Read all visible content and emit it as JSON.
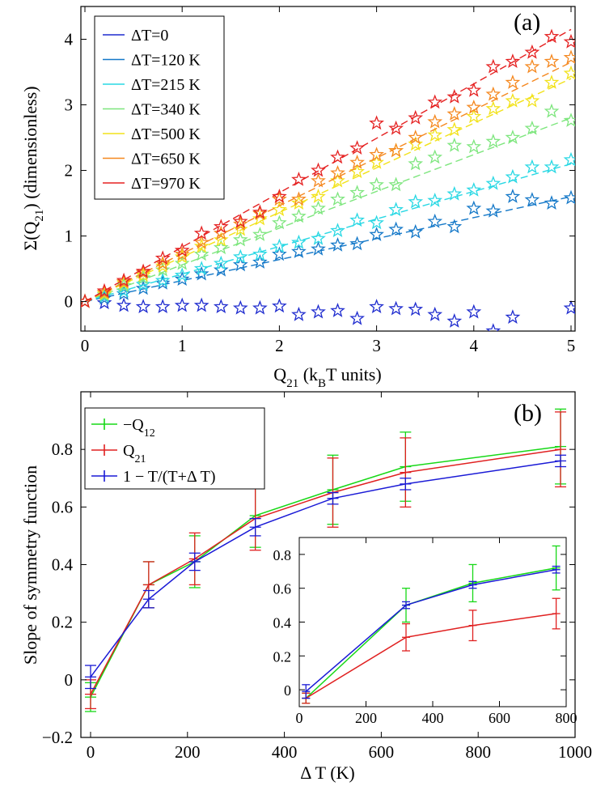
{
  "chart_data": [
    {
      "type": "scatter",
      "panel_label": "(a)",
      "xlabel": {
        "main": "Q",
        "sub": "21",
        "rest1": " (k",
        "sub2": "B",
        "rest2": "T units)"
      },
      "ylabel": {
        "main": "Σ(Q",
        "sub": "21",
        "rest": ") (dimensionless)"
      },
      "xlim": [
        0,
        5
      ],
      "ylim": [
        -0.45,
        4.5
      ],
      "xticks": [
        "0",
        "1",
        "2",
        "3",
        "4",
        "5"
      ],
      "yticks": [
        "0",
        "1",
        "2",
        "3",
        "4"
      ],
      "legend_position": "top-left",
      "x": [
        0,
        0.2,
        0.4,
        0.6,
        0.8,
        1.0,
        1.2,
        1.4,
        1.6,
        1.8,
        2.0,
        2.2,
        2.4,
        2.6,
        2.8,
        3.0,
        3.2,
        3.4,
        3.6,
        3.8,
        4.0,
        4.2,
        4.4,
        4.6,
        4.8,
        5.0
      ],
      "series": [
        {
          "name": "ΔT=0",
          "color": "#1f2ccf",
          "values": [
            0,
            -0.02,
            -0.06,
            -0.08,
            -0.08,
            -0.06,
            -0.06,
            -0.08,
            -0.1,
            -0.1,
            -0.07,
            -0.2,
            -0.16,
            -0.14,
            -0.26,
            -0.08,
            -0.11,
            -0.12,
            -0.2,
            -0.3,
            -0.16,
            -0.45,
            -0.24,
            null,
            null,
            -0.1
          ],
          "fit_slope": null
        },
        {
          "name": "ΔT=120 K",
          "color": "#1478c8",
          "values": [
            0,
            0.05,
            0.12,
            0.2,
            0.28,
            0.34,
            0.42,
            0.48,
            0.56,
            0.6,
            0.72,
            0.76,
            0.8,
            0.86,
            0.88,
            1.02,
            1.1,
            1.06,
            1.22,
            1.14,
            1.42,
            1.38,
            1.6,
            1.55,
            1.5,
            1.58
          ],
          "fit_slope": 0.32
        },
        {
          "name": "ΔT=215 K",
          "color": "#29d8e4",
          "values": [
            0,
            0.08,
            0.16,
            0.26,
            0.32,
            0.4,
            0.5,
            0.58,
            0.68,
            0.72,
            0.84,
            0.9,
            0.96,
            1.08,
            1.24,
            1.2,
            1.4,
            1.52,
            1.54,
            1.64,
            1.7,
            1.8,
            1.9,
            2.05,
            2.05,
            2.16
          ],
          "fit_slope": 0.42
        },
        {
          "name": "ΔT=340 K",
          "color": "#7ee67e",
          "values": [
            0,
            0.1,
            0.24,
            0.36,
            0.48,
            0.58,
            0.72,
            0.82,
            0.94,
            1.02,
            1.2,
            1.3,
            1.42,
            1.56,
            1.66,
            1.78,
            1.78,
            2.1,
            2.2,
            2.38,
            2.36,
            2.44,
            2.5,
            2.64,
            2.9,
            2.76
          ],
          "fit_slope": 0.56
        },
        {
          "name": "ΔT=500 K",
          "color": "#f2e21a",
          "values": [
            0,
            0.12,
            0.28,
            0.4,
            0.54,
            0.68,
            0.84,
            0.94,
            1.1,
            1.26,
            1.4,
            1.5,
            1.6,
            1.84,
            1.98,
            2.12,
            2.3,
            2.4,
            2.54,
            2.62,
            2.82,
            2.94,
            3.06,
            3.06,
            3.34,
            3.48
          ],
          "fit_slope": 0.68
        },
        {
          "name": "ΔT=650 K",
          "color": "#f5881f",
          "values": [
            0,
            0.14,
            0.3,
            0.44,
            0.58,
            0.72,
            0.9,
            1.04,
            1.18,
            1.34,
            1.56,
            1.56,
            1.84,
            1.96,
            2.12,
            2.24,
            2.3,
            2.5,
            2.74,
            2.86,
            2.96,
            3.16,
            3.34,
            3.58,
            3.66,
            3.72
          ],
          "fit_slope": 0.73
        },
        {
          "name": "ΔT=970 K",
          "color": "#e52121",
          "values": [
            0,
            0.16,
            0.32,
            0.46,
            0.66,
            0.78,
            1.04,
            1.14,
            1.22,
            1.36,
            1.6,
            1.86,
            2.0,
            2.2,
            2.34,
            2.72,
            2.64,
            2.8,
            3.04,
            3.12,
            3.22,
            3.58,
            3.66,
            3.8,
            4.04,
            3.96
          ],
          "fit_slope": 0.83
        }
      ]
    },
    {
      "type": "line",
      "panel_label": "(b)",
      "xlabel": "Δ T (K)",
      "ylabel": "Slope of symmetry function",
      "xlim": [
        -20,
        1000
      ],
      "ylim": [
        -0.2,
        1.0
      ],
      "xticks": [
        "0",
        "200",
        "400",
        "600",
        "800",
        "1000"
      ],
      "yticks": [
        "−0.2",
        "0",
        "0.2",
        "0.4",
        "0.6",
        "0.8"
      ],
      "legend_position": "top-left",
      "x": [
        0,
        120,
        215,
        340,
        500,
        650,
        970
      ],
      "series": [
        {
          "name": {
            "main": "−Q",
            "sub": "12"
          },
          "color": "#17d817",
          "values": [
            -0.06,
            0.33,
            0.41,
            0.57,
            0.66,
            0.74,
            0.81
          ],
          "errors": [
            0.05,
            0.08,
            0.09,
            0.11,
            0.12,
            0.12,
            0.13
          ]
        },
        {
          "name": {
            "main": "Q",
            "sub": "21"
          },
          "color": "#e02020",
          "values": [
            -0.05,
            0.33,
            0.42,
            0.56,
            0.65,
            0.72,
            0.8
          ],
          "errors": [
            0.05,
            0.08,
            0.09,
            0.11,
            0.12,
            0.12,
            0.13
          ]
        },
        {
          "name": {
            "main": "1 − T/(T+Δ T)",
            "sub": ""
          },
          "color": "#1a1ad6",
          "values": [
            0.01,
            0.28,
            0.41,
            0.53,
            0.63,
            0.68,
            0.76
          ],
          "errors": [
            0.04,
            0.03,
            0.03,
            0.03,
            0.02,
            0.02,
            0.02
          ]
        }
      ]
    },
    {
      "type": "line",
      "panel_label": "inset",
      "xlim": [
        0,
        800
      ],
      "ylim": [
        -0.1,
        0.9
      ],
      "xticks": [
        "0",
        "200",
        "400",
        "600",
        "800"
      ],
      "yticks": [
        "0",
        "0.2",
        "0.4",
        "0.6",
        "0.8"
      ],
      "x": [
        20,
        320,
        520,
        770
      ],
      "series": [
        {
          "name": "green",
          "color": "#17d817",
          "values": [
            -0.05,
            0.5,
            0.63,
            0.72
          ],
          "errors": [
            0.03,
            0.1,
            0.11,
            0.13
          ]
        },
        {
          "name": "red",
          "color": "#e02020",
          "values": [
            -0.05,
            0.31,
            0.38,
            0.45
          ],
          "errors": [
            0.03,
            0.08,
            0.09,
            0.09
          ]
        },
        {
          "name": "blue",
          "color": "#1a1ad6",
          "values": [
            -0.01,
            0.5,
            0.62,
            0.71
          ],
          "errors": [
            0.04,
            0.02,
            0.02,
            0.02
          ]
        }
      ]
    }
  ]
}
